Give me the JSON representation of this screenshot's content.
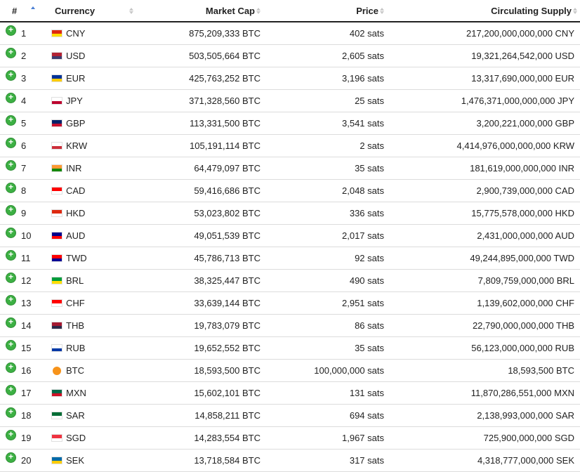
{
  "headers": {
    "rank": "#",
    "currency": "Currency",
    "market_cap": "Market Cap",
    "price": "Price",
    "supply": "Circulating Supply"
  },
  "rows": [
    {
      "rank": "1",
      "code": "CNY",
      "mcap": "875,209,333 BTC",
      "price": "402 sats",
      "supply": "217,200,000,000,000 CNY",
      "flag_colors": [
        "#de2910",
        "#ffde00"
      ]
    },
    {
      "rank": "2",
      "code": "USD",
      "mcap": "503,505,664 BTC",
      "price": "2,605 sats",
      "supply": "19,321,264,542,000 USD",
      "flag_colors": [
        "#b22234",
        "#3c3b6e"
      ]
    },
    {
      "rank": "3",
      "code": "EUR",
      "mcap": "425,763,252 BTC",
      "price": "3,196 sats",
      "supply": "13,317,690,000,000 EUR",
      "flag_colors": [
        "#003399",
        "#ffcc00"
      ]
    },
    {
      "rank": "4",
      "code": "JPY",
      "mcap": "371,328,560 BTC",
      "price": "25 sats",
      "supply": "1,476,371,000,000,000 JPY",
      "flag_colors": [
        "#ffffff",
        "#bc002d"
      ]
    },
    {
      "rank": "5",
      "code": "GBP",
      "mcap": "113,331,500 BTC",
      "price": "3,541 sats",
      "supply": "3,200,221,000,000 GBP",
      "flag_colors": [
        "#012169",
        "#c8102e"
      ]
    },
    {
      "rank": "6",
      "code": "KRW",
      "mcap": "105,191,114 BTC",
      "price": "2 sats",
      "supply": "4,414,976,000,000,000 KRW",
      "flag_colors": [
        "#ffffff",
        "#cd2e3a"
      ]
    },
    {
      "rank": "7",
      "code": "INR",
      "mcap": "64,479,097 BTC",
      "price": "35 sats",
      "supply": "181,619,000,000,000 INR",
      "flag_colors": [
        "#ff9933",
        "#138808"
      ]
    },
    {
      "rank": "8",
      "code": "CAD",
      "mcap": "59,416,686 BTC",
      "price": "2,048 sats",
      "supply": "2,900,739,000,000 CAD",
      "flag_colors": [
        "#ff0000",
        "#ffffff"
      ]
    },
    {
      "rank": "9",
      "code": "HKD",
      "mcap": "53,023,802 BTC",
      "price": "336 sats",
      "supply": "15,775,578,000,000 HKD",
      "flag_colors": [
        "#de2910",
        "#ffffff"
      ]
    },
    {
      "rank": "10",
      "code": "AUD",
      "mcap": "49,051,539 BTC",
      "price": "2,017 sats",
      "supply": "2,431,000,000,000 AUD",
      "flag_colors": [
        "#00008b",
        "#ff0000"
      ]
    },
    {
      "rank": "11",
      "code": "TWD",
      "mcap": "45,786,713 BTC",
      "price": "92 sats",
      "supply": "49,244,895,000,000 TWD",
      "flag_colors": [
        "#fe0000",
        "#000095"
      ]
    },
    {
      "rank": "12",
      "code": "BRL",
      "mcap": "38,325,447 BTC",
      "price": "490 sats",
      "supply": "7,809,759,000,000 BRL",
      "flag_colors": [
        "#009c3b",
        "#ffdf00"
      ]
    },
    {
      "rank": "13",
      "code": "CHF",
      "mcap": "33,639,144 BTC",
      "price": "2,951 sats",
      "supply": "1,139,602,000,000 CHF",
      "flag_colors": [
        "#ff0000",
        "#ffffff"
      ]
    },
    {
      "rank": "14",
      "code": "THB",
      "mcap": "19,783,079 BTC",
      "price": "86 sats",
      "supply": "22,790,000,000,000 THB",
      "flag_colors": [
        "#a51931",
        "#2d2a4a"
      ]
    },
    {
      "rank": "15",
      "code": "RUB",
      "mcap": "19,652,552 BTC",
      "price": "35 sats",
      "supply": "56,123,000,000,000 RUB",
      "flag_colors": [
        "#ffffff",
        "#0039a6"
      ]
    },
    {
      "rank": "16",
      "code": "BTC",
      "mcap": "18,593,500 BTC",
      "price": "100,000,000 sats",
      "supply": "18,593,500 BTC",
      "flag_colors": [
        "#f7931a",
        "#ffffff"
      ]
    },
    {
      "rank": "17",
      "code": "MXN",
      "mcap": "15,602,101 BTC",
      "price": "131 sats",
      "supply": "11,870,286,551,000 MXN",
      "flag_colors": [
        "#006847",
        "#ce1126"
      ]
    },
    {
      "rank": "18",
      "code": "SAR",
      "mcap": "14,858,211 BTC",
      "price": "694 sats",
      "supply": "2,138,993,000,000 SAR",
      "flag_colors": [
        "#006c35",
        "#ffffff"
      ]
    },
    {
      "rank": "19",
      "code": "SGD",
      "mcap": "14,283,554 BTC",
      "price": "1,967 sats",
      "supply": "725,900,000,000 SGD",
      "flag_colors": [
        "#ef3340",
        "#ffffff"
      ]
    },
    {
      "rank": "20",
      "code": "SEK",
      "mcap": "13,718,584 BTC",
      "price": "317 sats",
      "supply": "4,318,777,000,000 SEK",
      "flag_colors": [
        "#006aa7",
        "#fecc00"
      ]
    }
  ],
  "colors": {
    "expand_button": "#3cb043",
    "sort_active": "#4a7fd4",
    "sort_inactive": "#c8c8c8",
    "row_border": "#dcdcdc"
  }
}
